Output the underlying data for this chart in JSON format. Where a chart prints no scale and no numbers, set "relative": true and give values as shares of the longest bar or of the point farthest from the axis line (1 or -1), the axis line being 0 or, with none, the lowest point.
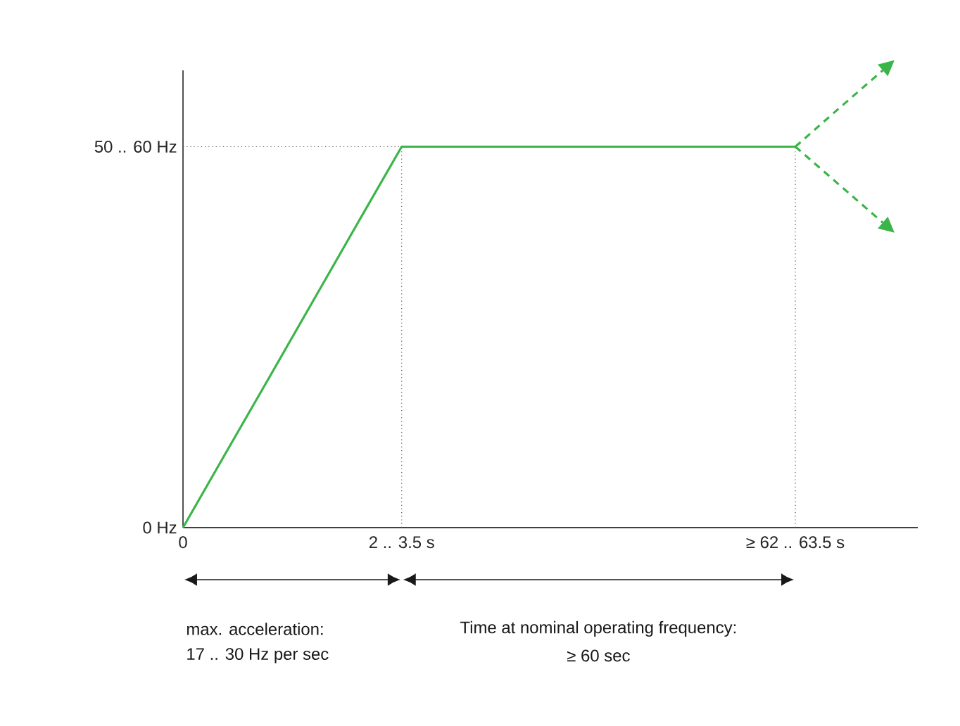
{
  "chart_data": {
    "type": "line",
    "relative": true,
    "categories": [
      "0",
      null,
      null,
      null,
      null,
      "2 .. 3.5 s",
      null,
      null,
      null,
      null,
      null,
      null,
      null,
      null,
      "≥ 62 .. 63.5 s",
      null,
      null
    ],
    "series": [
      {
        "color": "#3bb54a",
        "line_style": "solid",
        "values": [
          0,
          0.167,
          0.333,
          0.5,
          0.667,
          0.833,
          0.833,
          0.833,
          0.833,
          0.833,
          0.833,
          0.833,
          0.833,
          0.833,
          0.833,
          null,
          null
        ]
      },
      {
        "color": "#3bb54a",
        "line_style": "dashed",
        "values": [
          null,
          null,
          null,
          null,
          null,
          null,
          null,
          null,
          null,
          null,
          null,
          null,
          null,
          null,
          0.833,
          0.917,
          1.0
        ]
      },
      {
        "color": "#3bb54a",
        "line_style": "dashed",
        "values": [
          null,
          null,
          null,
          null,
          null,
          null,
          null,
          null,
          null,
          null,
          null,
          null,
          null,
          null,
          0.833,
          0.75,
          0.667
        ]
      }
    ],
    "ref_lines": [
      {
        "axis": "y",
        "value": 0,
        "label": "0 Hz",
        "color": "#333333",
        "line_style": "solid"
      },
      {
        "axis": "y",
        "value": 0.833,
        "label": "50 .. 60 Hz",
        "color": "#555555",
        "line_style": "dotted"
      },
      {
        "axis": "x",
        "value": "2 .. 3.5 s",
        "color": "#555555",
        "line_style": "dotted"
      },
      {
        "axis": "x",
        "value": "≥ 62 .. 63.5 s",
        "color": "#555555",
        "line_style": "dotted"
      }
    ],
    "annotations": [
      "max. acceleration:",
      "17 .. 30 Hz per sec",
      "Time at nominal operating frequency:",
      "≥ 60 sec"
    ]
  }
}
